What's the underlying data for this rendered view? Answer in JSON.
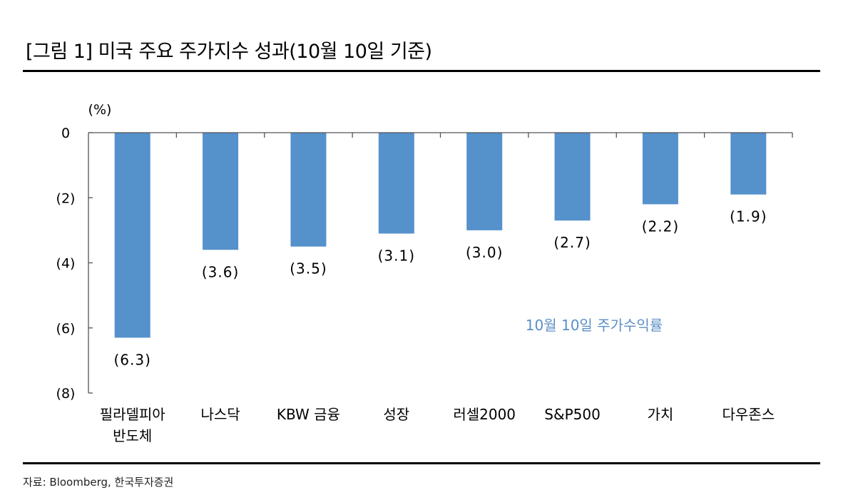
{
  "figure": {
    "title": "[그림 1] 미국 주요 주가지수 성과(10월 10일 기준)",
    "source": "자료: Bloomberg,  한국투자증권"
  },
  "colors": {
    "bar": "#5591cb",
    "annotation": "#5b8fc6",
    "axis": "#555555"
  },
  "chart_data": {
    "type": "bar",
    "title": "[그림 1] 미국 주요 주가지수 성과(10월 10일 기준)",
    "ylabel": "(%)",
    "xlabel": "",
    "ylim": [
      -8,
      0
    ],
    "yticks": [
      0,
      -2,
      -4,
      -6,
      -8
    ],
    "ytick_labels": [
      "0",
      "(2)",
      "(4)",
      "(6)",
      "(8)"
    ],
    "grid": false,
    "categories": [
      [
        "필라델피아",
        "반도체"
      ],
      [
        "나스닥"
      ],
      [
        "KBW 금융"
      ],
      [
        "성장"
      ],
      [
        "러셀2000"
      ],
      [
        "S&P500"
      ],
      [
        "가치"
      ],
      [
        "다우존스"
      ]
    ],
    "series": [
      {
        "name": "10월 10일 주가수익률",
        "values": [
          -6.3,
          -3.6,
          -3.5,
          -3.1,
          -3.0,
          -2.7,
          -2.2,
          -1.9
        ],
        "data_labels": [
          "(6.3)",
          "(3.6)",
          "(3.5)",
          "(3.1)",
          "(3.0)",
          "(2.7)",
          "(2.2)",
          "(1.9)"
        ]
      }
    ],
    "annotation": "10월 10일 주가수익률"
  }
}
